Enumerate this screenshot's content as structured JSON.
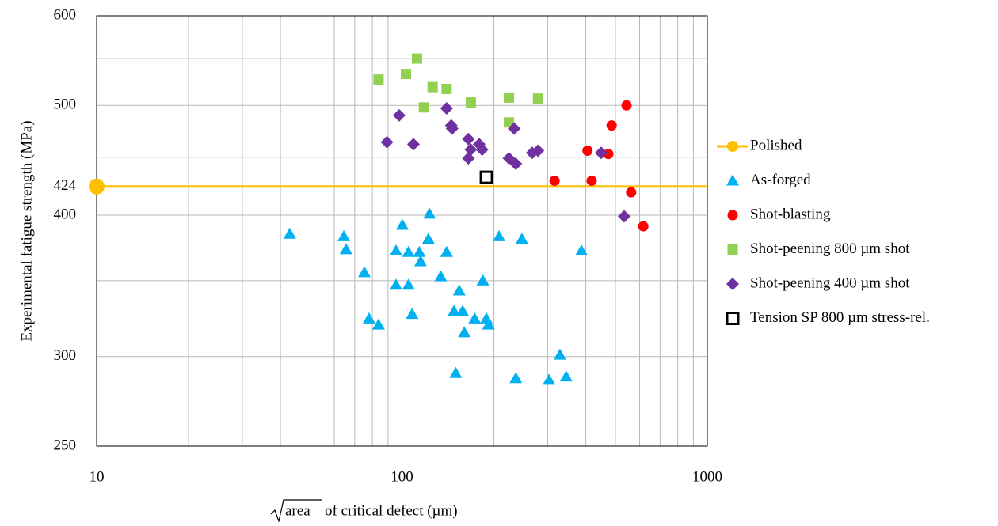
{
  "chart_data": {
    "type": "scatter",
    "xlabel_radicand": "area",
    "xlabel": "of critical defect (µm)",
    "ylabel": "Experimental fatigue strength (MPa)",
    "xscale": "log",
    "yscale": "log",
    "grid": true,
    "legend": "right",
    "xlim": [
      10,
      1000
    ],
    "xticks": [
      10,
      100,
      1000
    ],
    "x_minor_grid": [
      20,
      30,
      40,
      50,
      60,
      70,
      80,
      90,
      200,
      300,
      400,
      500,
      600,
      700,
      800,
      900
    ],
    "ylim": [
      250,
      600
    ],
    "yticks": [
      250,
      300,
      400,
      424,
      500,
      600
    ],
    "y_minor_grid": [
      350,
      450,
      550
    ],
    "series": [
      {
        "name": "Polished",
        "color": "#ffc000",
        "marker": "circle-line",
        "x": [
          10
        ],
        "values": [
          424
        ]
      },
      {
        "name": "As-forged",
        "color": "#00b0f0",
        "marker": "triangle",
        "x": [
          42.9,
          64.5,
          65.6,
          75.3,
          95.6,
          95.6,
          78,
          83.8,
          100.3,
          105,
          105,
          108,
          114,
          115,
          122,
          123,
          134,
          140,
          148,
          154,
          158,
          150,
          160,
          173,
          184,
          189,
          192,
          208,
          236,
          247,
          303,
          329,
          345,
          387
        ],
        "values": [
          385,
          383,
          373,
          356,
          372,
          347,
          324,
          320,
          392,
          371,
          347,
          327,
          371,
          364,
          381,
          401,
          353,
          371,
          329,
          343,
          329,
          290,
          315,
          324,
          350,
          324,
          320,
          383,
          287,
          381,
          286,
          301,
          288,
          372
        ]
      },
      {
        "name": "Shot-blasting",
        "color": "#ff0000",
        "marker": "circle",
        "x": [
          316,
          405,
          418,
          474,
          486,
          544,
          563,
          617
        ],
        "values": [
          429,
          456,
          429,
          453,
          480,
          500,
          419,
          391
        ]
      },
      {
        "name": "Shot-peening 800 µm shot",
        "color": "#92d050",
        "marker": "square",
        "x": [
          83.8,
          103,
          112,
          118,
          126,
          140,
          168,
          224,
          224,
          279
        ],
        "values": [
          527,
          533,
          550,
          498,
          519,
          517,
          503,
          508,
          483,
          507
        ]
      },
      {
        "name": "Shot-peening 400 µm shot",
        "color": "#7030a0",
        "marker": "diamond",
        "x": [
          89.3,
          97.9,
          109,
          140,
          145,
          146,
          165,
          168,
          165,
          179,
          183,
          224,
          236,
          233,
          267,
          279,
          449,
          534
        ],
        "values": [
          464,
          490,
          462,
          497,
          480,
          477,
          467,
          457,
          449,
          462,
          457,
          449,
          444,
          477,
          454,
          456,
          454,
          399
        ]
      },
      {
        "name": "Tension SP 800 µm stress-rel.",
        "color": "#000000",
        "marker": "open-square",
        "x": [
          189
        ],
        "values": [
          432
        ]
      }
    ]
  }
}
